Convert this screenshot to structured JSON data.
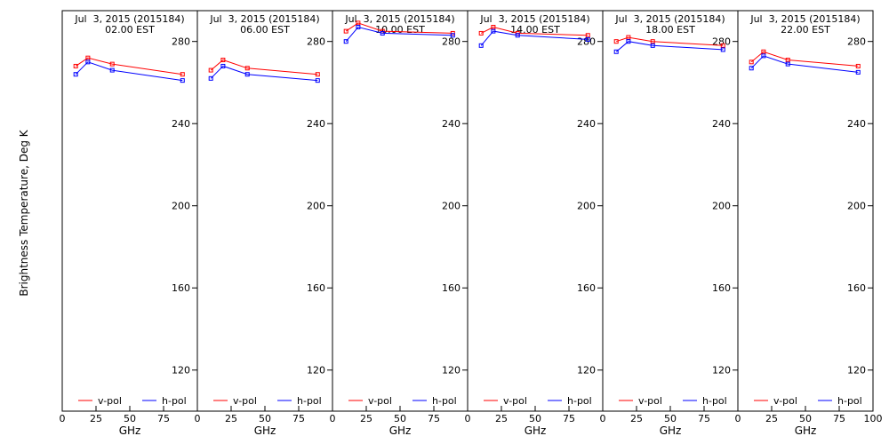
{
  "figure": {
    "ylabel": "Brightness Temperature, Deg K",
    "xlabel": "GHz"
  },
  "chart_data": [
    {
      "type": "line",
      "title_line1": "Jul  3, 2015 (2015184)",
      "title_line2": "02.00 EST",
      "x": [
        10,
        19,
        37,
        89
      ],
      "xlim": [
        0,
        100
      ],
      "ylim": [
        100,
        295
      ],
      "yticks": [
        120,
        160,
        200,
        240,
        280
      ],
      "xticks": [
        0,
        25,
        50,
        75
      ],
      "series": [
        {
          "name": "v-pol",
          "color": "#ff0000",
          "values": [
            268,
            272,
            269,
            264
          ]
        },
        {
          "name": "h-pol",
          "color": "#0000ff",
          "values": [
            264,
            270,
            266,
            261
          ]
        }
      ]
    },
    {
      "type": "line",
      "title_line1": "Jul  3, 2015 (2015184)",
      "title_line2": "06.00 EST",
      "x": [
        10,
        19,
        37,
        89
      ],
      "xlim": [
        0,
        100
      ],
      "ylim": [
        100,
        295
      ],
      "yticks": [
        120,
        160,
        200,
        240,
        280
      ],
      "xticks": [
        0,
        25,
        50,
        75
      ],
      "series": [
        {
          "name": "v-pol",
          "color": "#ff0000",
          "values": [
            266,
            271,
            267,
            264
          ]
        },
        {
          "name": "h-pol",
          "color": "#0000ff",
          "values": [
            262,
            268,
            264,
            261
          ]
        }
      ]
    },
    {
      "type": "line",
      "title_line1": "Jul  3, 2015 (2015184)",
      "title_line2": "10.00 EST",
      "x": [
        10,
        19,
        37,
        89
      ],
      "xlim": [
        0,
        100
      ],
      "ylim": [
        100,
        295
      ],
      "yticks": [
        120,
        160,
        200,
        240,
        280
      ],
      "xticks": [
        0,
        25,
        50,
        75
      ],
      "series": [
        {
          "name": "v-pol",
          "color": "#ff0000",
          "values": [
            285,
            289,
            285,
            284
          ]
        },
        {
          "name": "h-pol",
          "color": "#0000ff",
          "values": [
            280,
            287,
            284,
            283
          ]
        }
      ]
    },
    {
      "type": "line",
      "title_line1": "Jul  3, 2015 (2015184)",
      "title_line2": "14.00 EST",
      "x": [
        10,
        19,
        37,
        89
      ],
      "xlim": [
        0,
        100
      ],
      "ylim": [
        100,
        295
      ],
      "yticks": [
        120,
        160,
        200,
        240,
        280
      ],
      "xticks": [
        0,
        25,
        50,
        75
      ],
      "series": [
        {
          "name": "v-pol",
          "color": "#ff0000",
          "values": [
            284,
            287,
            284,
            283
          ]
        },
        {
          "name": "h-pol",
          "color": "#0000ff",
          "values": [
            278,
            285,
            283,
            281
          ]
        }
      ]
    },
    {
      "type": "line",
      "title_line1": "Jul  3, 2015 (2015184)",
      "title_line2": "18.00 EST",
      "x": [
        10,
        19,
        37,
        89
      ],
      "xlim": [
        0,
        100
      ],
      "ylim": [
        100,
        295
      ],
      "yticks": [
        120,
        160,
        200,
        240,
        280
      ],
      "xticks": [
        0,
        25,
        50,
        75
      ],
      "series": [
        {
          "name": "v-pol",
          "color": "#ff0000",
          "values": [
            280,
            282,
            280,
            278
          ]
        },
        {
          "name": "h-pol",
          "color": "#0000ff",
          "values": [
            275,
            280,
            278,
            276
          ]
        }
      ]
    },
    {
      "type": "line",
      "title_line1": "Jul  3, 2015 (2015184)",
      "title_line2": "22.00 EST",
      "x": [
        10,
        19,
        37,
        89
      ],
      "xlim": [
        0,
        100
      ],
      "ylim": [
        100,
        295
      ],
      "yticks": [
        120,
        160,
        200,
        240,
        280
      ],
      "xticks": [
        0,
        25,
        50,
        75,
        100
      ],
      "series": [
        {
          "name": "v-pol",
          "color": "#ff0000",
          "values": [
            270,
            275,
            271,
            268
          ]
        },
        {
          "name": "h-pol",
          "color": "#0000ff",
          "values": [
            267,
            273,
            269,
            265
          ]
        }
      ]
    }
  ]
}
